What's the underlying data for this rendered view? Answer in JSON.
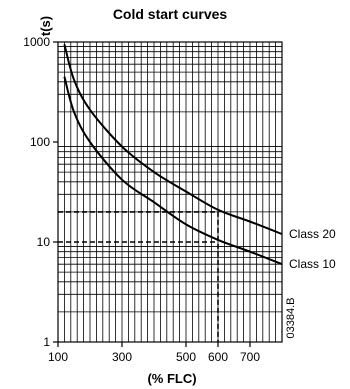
{
  "chart_data": {
    "type": "line",
    "title": "Cold start curves",
    "xlabel": "(% FLC)",
    "ylabel": "t(s)",
    "x_scale": "linear",
    "y_scale": "log",
    "xlim": [
      100,
      800
    ],
    "ylim": [
      1,
      1000
    ],
    "x_ticks": [
      {
        "value": 100,
        "label": "100"
      },
      {
        "value": 300,
        "label": "300"
      },
      {
        "value": 500,
        "label": "500"
      },
      {
        "value": 600,
        "label": "600"
      },
      {
        "value": 700,
        "label": "700"
      }
    ],
    "y_ticks": [
      {
        "value": 1,
        "label": "1"
      },
      {
        "value": 10,
        "label": "10"
      },
      {
        "value": 100,
        "label": "100"
      },
      {
        "value": 1000,
        "label": "1000"
      }
    ],
    "grid": true,
    "series": [
      {
        "name": "Class 20",
        "x": [
          120,
          150,
          200,
          300,
          400,
          500,
          600,
          700,
          800
        ],
        "y": [
          950,
          420,
          210,
          90,
          50,
          32,
          21,
          16,
          12
        ]
      },
      {
        "name": "Class 10",
        "x": [
          120,
          150,
          200,
          300,
          400,
          500,
          600,
          700,
          800
        ],
        "y": [
          450,
          200,
          100,
          42,
          25,
          15,
          10.5,
          8,
          6
        ]
      }
    ],
    "annotations": [
      {
        "type": "reference",
        "x": 600,
        "y": 20
      },
      {
        "type": "reference",
        "x": 600,
        "y": 10
      }
    ],
    "image_code": "03384.B"
  }
}
